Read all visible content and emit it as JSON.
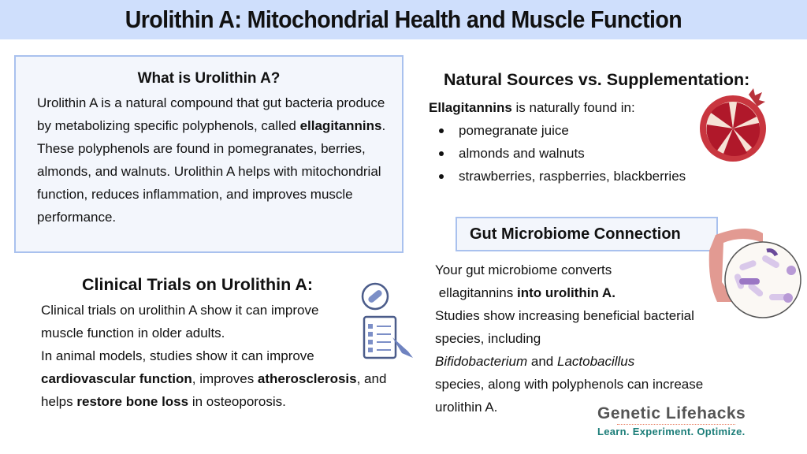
{
  "title": "Urolithin A: Mitochondrial Health and Muscle Function",
  "what": {
    "heading": "What is Urolithin A?",
    "p1": "Urolithin A is a natural compound that gut bacteria produce by metabolizing specific polyphenols, called ",
    "b1": "ellagitannins",
    "p2": ". These polyphenols are found in pomegranates, berries, almonds, and walnuts. Urolithin A helps with mitochondrial function, reduces inflammation, and improves muscle performance."
  },
  "sources": {
    "heading": "Natural Sources vs. Supplementation:",
    "intro_bold": "Ellagitannins",
    "intro": " is naturally found in:",
    "items": [
      "pomegranate juice",
      "almonds and walnuts",
      "strawberries, raspberries, blackberries"
    ]
  },
  "gut": {
    "heading": "Gut Microbiome Connection",
    "t1": "Your gut microbiome converts",
    "t2": " ellagitannins ",
    "b1": "into urolithin A.",
    "t3": "Studies show increasing beneficial bacterial species, including",
    "i1": "Bifidobacterium",
    "t4": " and ",
    "i2": "Lactobacillus",
    "t5": "species, along with polyphenols can increase urolithin A."
  },
  "clinical": {
    "heading": "Clinical Trials on Urolithin A:",
    "t1": "Clinical trials on urolithin A show it can improve muscle function in older adults.",
    "t2": "In animal models, studies show it can improve ",
    "b1": "cardiovascular function",
    "t3": ", improves ",
    "b2": "atherosclerosis",
    "t4": ", and helps ",
    "b3": "restore bone loss",
    "t5": " in osteoporosis."
  },
  "logo": {
    "name": "Genetic Lifehacks",
    "tagline": "Learn. Experiment. Optimize."
  },
  "colors": {
    "title_bg": "#cfdffc",
    "box_bg": "#f3f6fc",
    "box_border": "#a9c1ee",
    "logo_teal": "#1b7d78"
  }
}
